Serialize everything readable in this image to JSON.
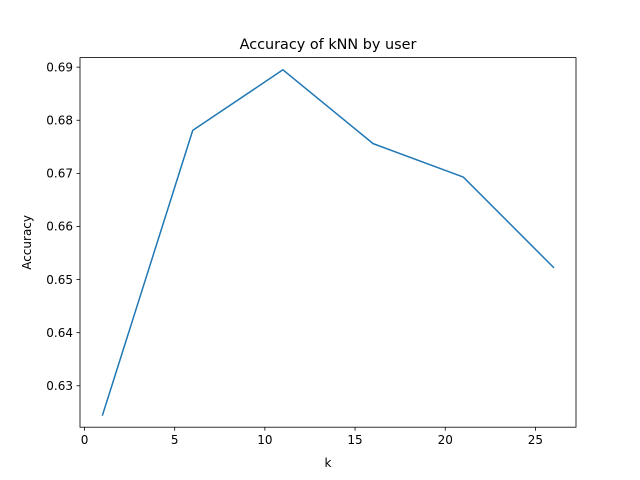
{
  "chart_data": {
    "type": "line",
    "title": "Accuracy of kNN by user",
    "xlabel": "k",
    "ylabel": "Accuracy",
    "xlim": [
      -0.25,
      27.25
    ],
    "ylim": [
      0.6222,
      0.6918
    ],
    "xticks": [
      0,
      5,
      10,
      15,
      20,
      25
    ],
    "xtick_labels": [
      "0",
      "5",
      "10",
      "15",
      "20",
      "25"
    ],
    "yticks": [
      0.63,
      0.64,
      0.65,
      0.66,
      0.67,
      0.68,
      0.69
    ],
    "ytick_labels": [
      "0.63",
      "0.64",
      "0.65",
      "0.66",
      "0.67",
      "0.68",
      "0.69"
    ],
    "grid": false,
    "series": [
      {
        "color": "#1f77b4",
        "x": [
          1,
          6,
          11,
          16,
          21,
          26
        ],
        "y": [
          0.6245,
          0.6781,
          0.6895,
          0.6756,
          0.6693,
          0.6523
        ]
      }
    ]
  }
}
